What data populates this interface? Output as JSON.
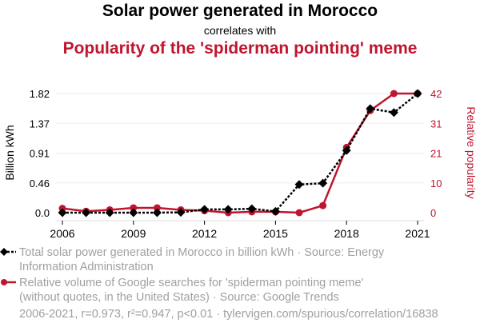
{
  "header": {
    "title": "Solar power generated in Morocco",
    "subtitle": "correlates with",
    "title2": "Popularity of the 'spiderman pointing' meme"
  },
  "legend": {
    "series1": "Total solar power generated in Morocco in billion kWh · Source: Energy Information Administration",
    "series2": "Relative volume of Google searches for 'spiderman pointing meme' (without quotes, in the United States) · Source: Google Trends"
  },
  "footer": "2006-2021, r=0.973, r²=0.947, p<0.01 · tylervigen.com/spurious/correlation/16838",
  "colors": {
    "series1": "#000000",
    "series2": "#c0152f",
    "grid": "#eeeeee"
  },
  "chart_data": {
    "type": "line",
    "title": "Solar power generated in Morocco correlates with Popularity of the 'spiderman pointing' meme",
    "x": [
      2006,
      2007,
      2008,
      2009,
      2010,
      2011,
      2012,
      2013,
      2014,
      2015,
      2016,
      2017,
      2018,
      2019,
      2020,
      2021
    ],
    "xticks": [
      "2006",
      "2009",
      "2012",
      "2015",
      "2018",
      "2021"
    ],
    "xlim": [
      2006,
      2021
    ],
    "ylabel_left": "Billion kWh",
    "ylabel_right": "Relative popularity",
    "yticks_left": [
      "0.0",
      "0.46",
      "0.91",
      "1.37",
      "1.82"
    ],
    "yticks_right": [
      "0",
      "10",
      "21",
      "31",
      "42"
    ],
    "ylim_left": [
      0,
      1.82
    ],
    "ylim_right": [
      0,
      42
    ],
    "grid": true,
    "legend_position": "bottom",
    "series": [
      {
        "name": "Total solar power generated in Morocco in billion kWh",
        "axis": "left",
        "style": "dotted-diamond",
        "values": [
          0.0,
          0.0,
          0.0,
          0.0,
          0.0,
          0.005,
          0.05,
          0.05,
          0.06,
          0.02,
          0.43,
          0.45,
          0.95,
          1.59,
          1.53,
          1.82
        ]
      },
      {
        "name": "Relative volume of Google searches for 'spiderman pointing meme'",
        "axis": "right",
        "style": "solid-circle",
        "values": [
          1.5,
          0.5,
          1,
          1.7,
          1.7,
          1,
          0.7,
          0,
          0.3,
          0.3,
          0,
          2.5,
          23,
          36,
          42,
          42
        ]
      }
    ]
  }
}
